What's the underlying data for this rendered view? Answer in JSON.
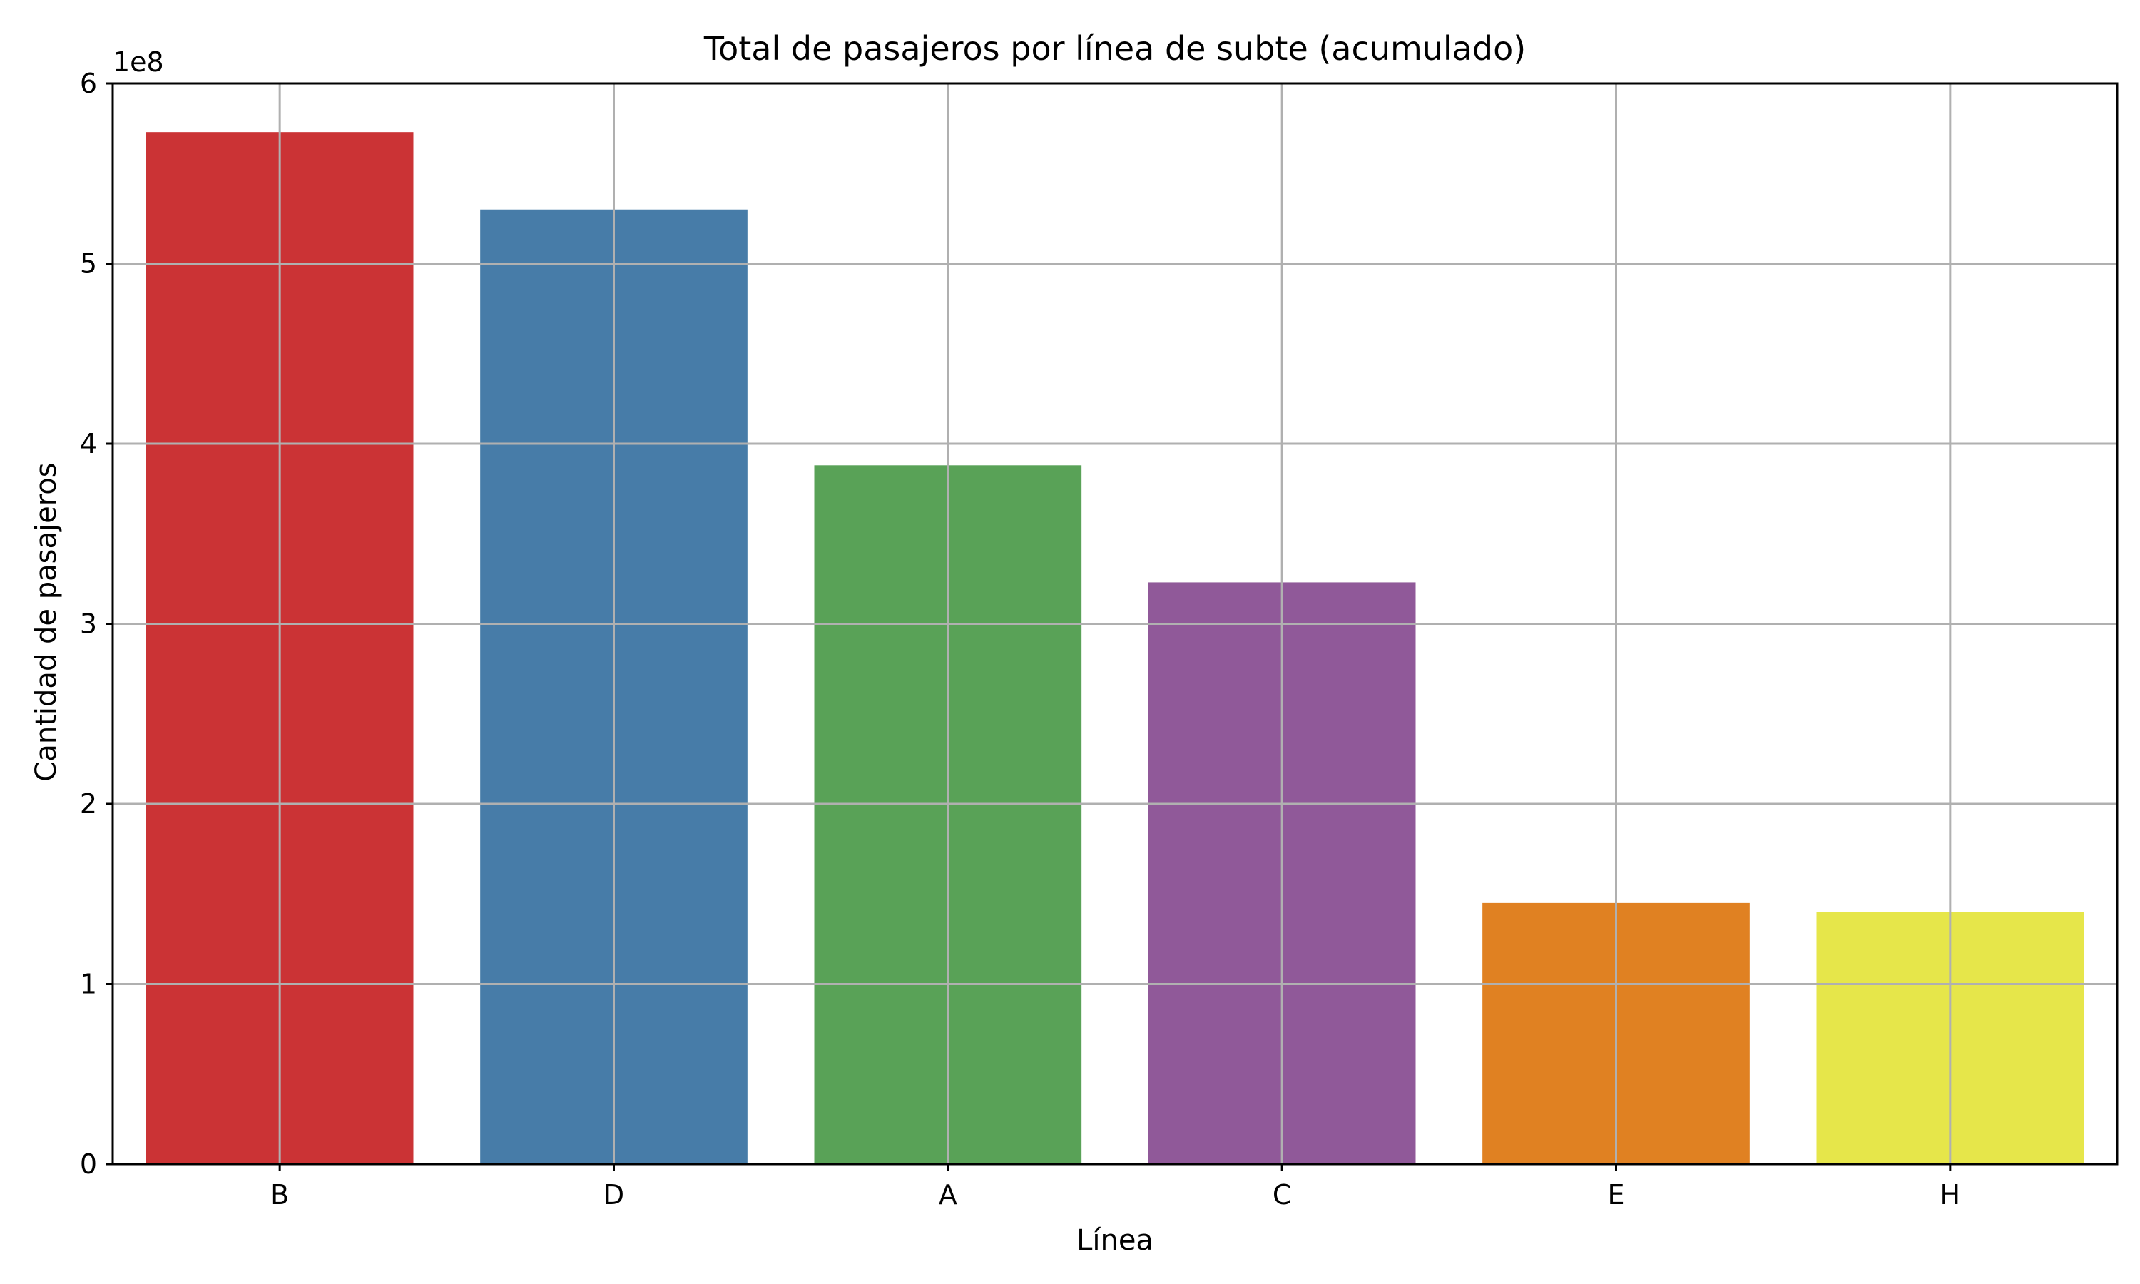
{
  "chart_data": {
    "type": "bar",
    "title": "Total de pasajeros por línea de subte (acumulado)",
    "xlabel": "Línea",
    "ylabel": "Cantidad de pasajeros",
    "y_offset_label": "1e8",
    "categories": [
      "B",
      "D",
      "A",
      "C",
      "E",
      "H"
    ],
    "values": [
      573000000,
      530000000,
      388000000,
      323000000,
      145000000,
      140000000
    ],
    "colors": [
      "#cb3335",
      "#477ca8",
      "#59a257",
      "#905999",
      "#e08122",
      "#e6e64a"
    ],
    "ylim": [
      0,
      600000000
    ],
    "yticks": [
      0,
      100000000,
      200000000,
      300000000,
      400000000,
      500000000,
      600000000
    ],
    "ytick_labels": [
      "0",
      "1",
      "2",
      "3",
      "4",
      "5",
      "6"
    ],
    "grid": true,
    "legend": "none"
  }
}
